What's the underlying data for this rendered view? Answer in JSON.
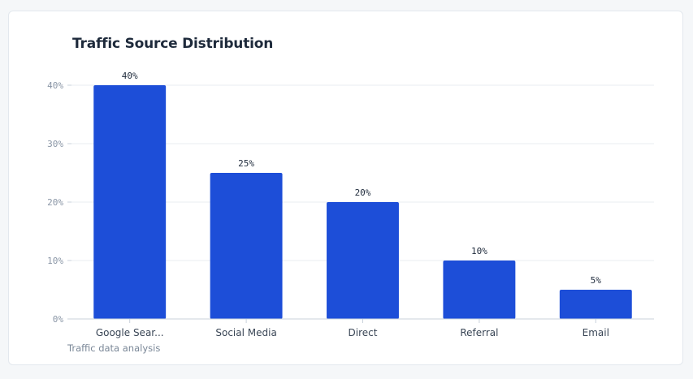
{
  "chart_data": {
    "type": "bar",
    "title": "Traffic Source Distribution",
    "caption": "Traffic data analysis",
    "categories": [
      "Google Sear...",
      "Social Media",
      "Direct",
      "Referral",
      "Email"
    ],
    "values": [
      40,
      25,
      20,
      10,
      5
    ],
    "data_labels": [
      "40%",
      "25%",
      "20%",
      "10%",
      "5%"
    ],
    "y_ticks": [
      0,
      10,
      20,
      30,
      40
    ],
    "y_tick_labels": [
      "0%",
      "10%",
      "20%",
      "30%",
      "40%"
    ],
    "ylim": [
      0,
      40
    ],
    "xlabel": "",
    "ylabel": "",
    "grid": true,
    "legend": "none",
    "colors": {
      "bar": "#1d4ed8",
      "grid": "#e8ecf1",
      "axis": "#c9d1db"
    }
  }
}
